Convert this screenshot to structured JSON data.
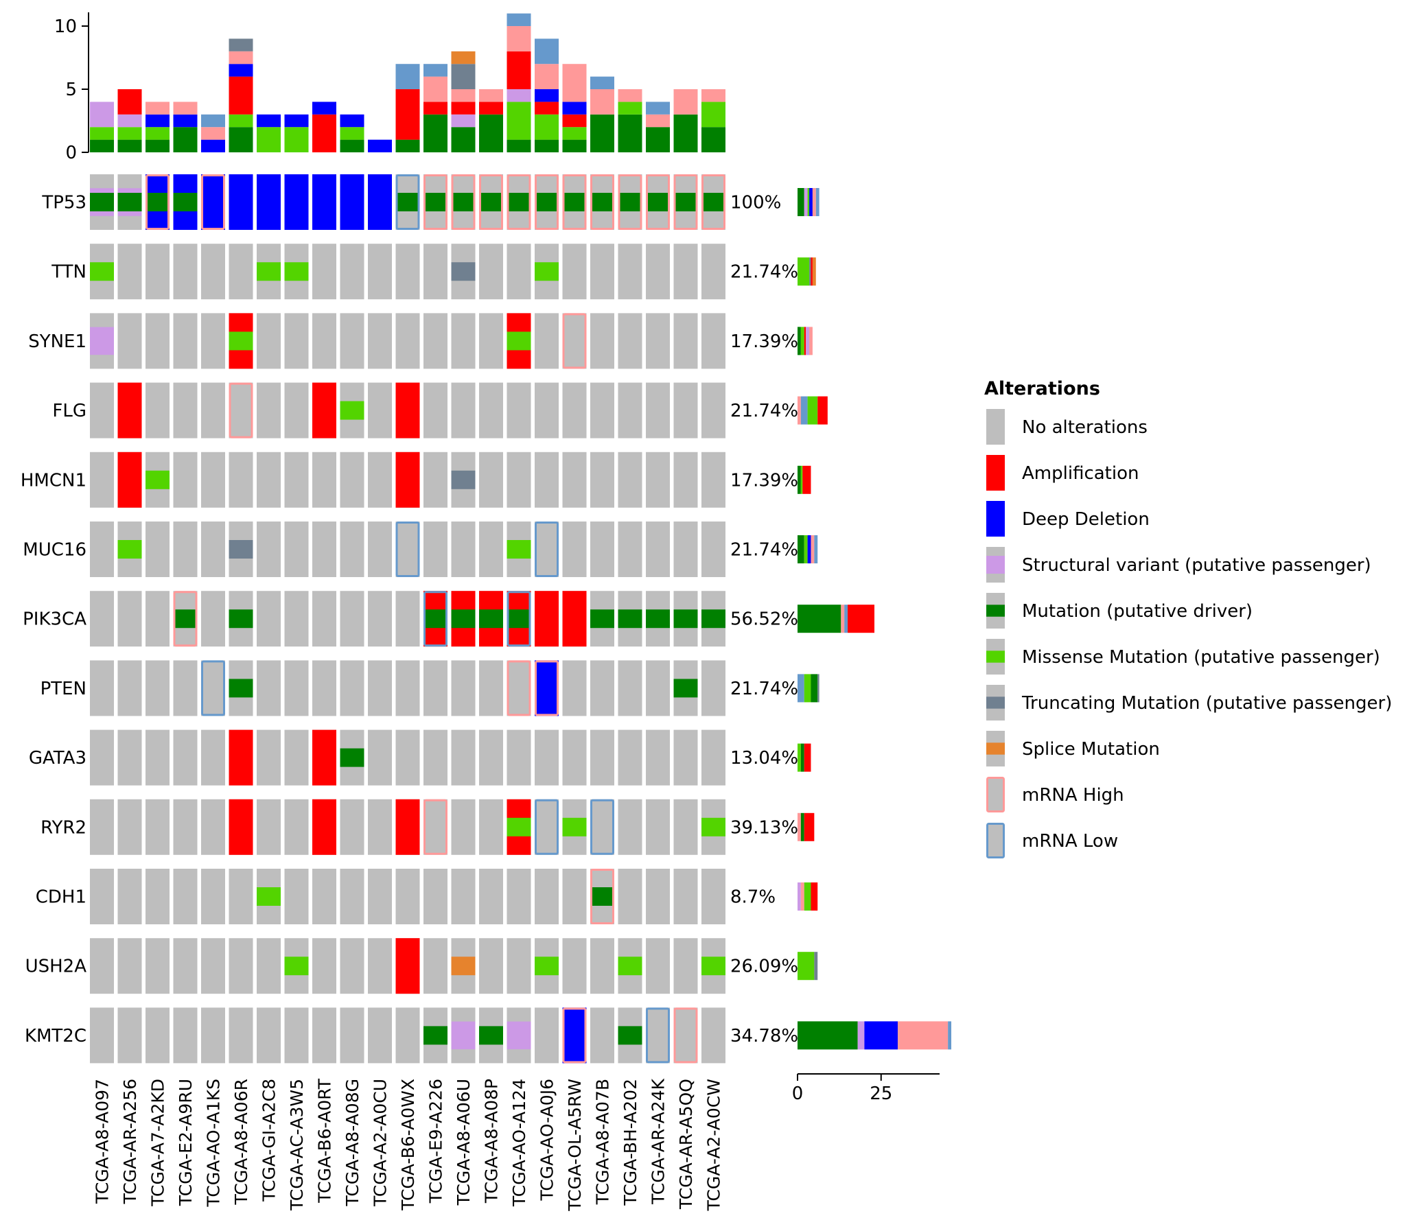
{
  "chart_data": {
    "type": "oncoprint",
    "samples": [
      "TCGA-A8-A097",
      "TCGA-AR-A256",
      "TCGA-A7-A2KD",
      "TCGA-E2-A9RU",
      "TCGA-AO-A1KS",
      "TCGA-A8-A06R",
      "TCGA-GI-A2C8",
      "TCGA-AC-A3W5",
      "TCGA-B6-A0RT",
      "TCGA-A8-A08G",
      "TCGA-A2-A0CU",
      "TCGA-B6-A0WX",
      "TCGA-E9-A226",
      "TCGA-A8-A06U",
      "TCGA-A8-A08P",
      "TCGA-AO-A124",
      "TCGA-AO-A0J6",
      "TCGA-OL-A5RW",
      "TCGA-A8-A07B",
      "TCGA-BH-A202",
      "TCGA-AR-A24K",
      "TCGA-AR-A5QQ",
      "TCGA-A2-A0CW"
    ],
    "genes": [
      {
        "name": "TP53",
        "percent": "100%"
      },
      {
        "name": "TTN",
        "percent": "21.74%"
      },
      {
        "name": "SYNE1",
        "percent": "17.39%"
      },
      {
        "name": "FLG",
        "percent": "21.74%"
      },
      {
        "name": "HMCN1",
        "percent": "17.39%"
      },
      {
        "name": "MUC16",
        "percent": "21.74%"
      },
      {
        "name": "PIK3CA",
        "percent": "56.52%"
      },
      {
        "name": "PTEN",
        "percent": "21.74%"
      },
      {
        "name": "GATA3",
        "percent": "13.04%"
      },
      {
        "name": "RYR2",
        "percent": "39.13%"
      },
      {
        "name": "CDH1",
        "percent": "8.7%"
      },
      {
        "name": "USH2A",
        "percent": "26.09%"
      },
      {
        "name": "KMT2C",
        "percent": "34.78%"
      }
    ],
    "alterations": {
      "TP53": [
        [
          "SV",
          "DRV"
        ],
        [
          "SV",
          "DRV"
        ],
        [
          "DEL",
          "DRV",
          "HIGH"
        ],
        [
          "DEL",
          "DRV"
        ],
        [
          "DEL",
          "HIGH"
        ],
        [
          "DEL"
        ],
        [
          "DEL"
        ],
        [
          "DEL"
        ],
        [
          "DEL"
        ],
        [
          "DEL"
        ],
        [
          "DEL"
        ],
        [
          "DRV",
          "LOW"
        ],
        [
          "DRV",
          "HIGH"
        ],
        [
          "DRV",
          "HIGH"
        ],
        [
          "DRV",
          "HIGH"
        ],
        [
          "DRV",
          "HIGH"
        ],
        [
          "DRV",
          "HIGH"
        ],
        [
          "DRV",
          "HIGH"
        ],
        [
          "DRV",
          "HIGH"
        ],
        [
          "DRV",
          "HIGH"
        ],
        [
          "DRV",
          "HIGH"
        ],
        [
          "DRV",
          "HIGH"
        ],
        [
          "DRV",
          "HIGH"
        ]
      ],
      "TTN": [
        [
          "MIS"
        ],
        [],
        [],
        [],
        [],
        [],
        [
          "MIS"
        ],
        [
          "MIS"
        ],
        [],
        [],
        [],
        [],
        [],
        [
          "TRUNC"
        ],
        [],
        [],
        [
          "MIS"
        ],
        [],
        [],
        [],
        [],
        [],
        []
      ],
      "SYNE1": [
        [
          "SV"
        ],
        [],
        [],
        [],
        [],
        [
          "AMP",
          "MIS"
        ],
        [],
        [],
        [],
        [],
        [],
        [],
        [],
        [],
        [],
        [
          "AMP",
          "MIS"
        ],
        [],
        [
          "HIGH"
        ],
        [],
        [],
        [],
        [],
        []
      ],
      "FLG": [
        [],
        [
          "AMP"
        ],
        [],
        [],
        [],
        [
          "HIGH"
        ],
        [],
        [],
        [
          "AMP"
        ],
        [
          "MIS"
        ],
        [],
        [
          "AMP"
        ],
        [],
        [],
        [],
        [],
        [],
        [],
        [],
        [],
        [],
        [],
        []
      ],
      "HMCN1": [
        [],
        [
          "AMP"
        ],
        [
          "MIS"
        ],
        [],
        [],
        [],
        [],
        [],
        [],
        [],
        [],
        [
          "AMP"
        ],
        [],
        [
          "TRUNC"
        ],
        [],
        [],
        [],
        [],
        [],
        [],
        [],
        [],
        []
      ],
      "MUC16": [
        [],
        [
          "MIS"
        ],
        [],
        [],
        [],
        [
          "TRUNC"
        ],
        [],
        [],
        [],
        [],
        [],
        [
          "LOW"
        ],
        [],
        [],
        [],
        [
          "MIS"
        ],
        [
          "LOW"
        ],
        [],
        [],
        [],
        [],
        [],
        []
      ],
      "PIK3CA": [
        [],
        [],
        [],
        [
          "DRV",
          "HIGH"
        ],
        [],
        [
          "DRV"
        ],
        [],
        [],
        [],
        [],
        [],
        [],
        [
          "AMP",
          "DRV",
          "LOW"
        ],
        [
          "AMP",
          "DRV"
        ],
        [
          "AMP",
          "DRV"
        ],
        [
          "AMP",
          "DRV",
          "LOW"
        ],
        [
          "AMP"
        ],
        [
          "AMP"
        ],
        [
          "DRV"
        ],
        [
          "DRV"
        ],
        [
          "DRV"
        ],
        [
          "DRV"
        ],
        [
          "DRV"
        ]
      ],
      "PTEN": [
        [],
        [],
        [],
        [],
        [
          "LOW"
        ],
        [
          "DRV"
        ],
        [],
        [],
        [],
        [],
        [],
        [],
        [],
        [],
        [],
        [
          "HIGH"
        ],
        [
          "DEL",
          "HIGH"
        ],
        [],
        [],
        [],
        [],
        [
          "DRV"
        ],
        []
      ],
      "GATA3": [
        [],
        [],
        [],
        [],
        [],
        [
          "AMP"
        ],
        [],
        [],
        [
          "AMP"
        ],
        [
          "DRV"
        ],
        [],
        [],
        [],
        [],
        [],
        [],
        [],
        [],
        [],
        [],
        [],
        [],
        []
      ],
      "RYR2": [
        [],
        [],
        [],
        [],
        [],
        [
          "AMP"
        ],
        [],
        [],
        [
          "AMP"
        ],
        [],
        [],
        [
          "AMP"
        ],
        [
          "HIGH"
        ],
        [],
        [],
        [
          "AMP",
          "MIS"
        ],
        [
          "LOW"
        ],
        [
          "MIS"
        ],
        [
          "LOW"
        ],
        [],
        [],
        [],
        [
          "MIS"
        ]
      ],
      "CDH1": [
        [],
        [],
        [],
        [],
        [],
        [],
        [
          "MIS"
        ],
        [],
        [],
        [],
        [],
        [],
        [],
        [],
        [],
        [],
        [],
        [],
        [
          "DRV",
          "HIGH"
        ],
        [],
        [],
        [],
        []
      ],
      "USH2A": [
        [],
        [],
        [],
        [],
        [],
        [],
        [],
        [
          "MIS"
        ],
        [],
        [],
        [],
        [
          "AMP"
        ],
        [],
        [
          "SPLICE"
        ],
        [],
        [],
        [
          "MIS"
        ],
        [],
        [],
        [
          "MIS"
        ],
        [],
        [],
        [
          "MIS"
        ]
      ],
      "KMT2C": [
        [],
        [],
        [],
        [],
        [],
        [],
        [],
        [],
        [],
        [],
        [],
        [],
        [
          "DRV"
        ],
        [
          "SV"
        ],
        [
          "DRV"
        ],
        [
          "SV"
        ],
        [],
        [
          "DEL",
          "HIGH"
        ],
        [],
        [
          "DRV"
        ],
        [
          "LOW"
        ],
        [
          "HIGH"
        ],
        []
      ]
    },
    "top_bars": [
      [
        [
          "DRV",
          1
        ],
        [
          "MIS",
          1
        ],
        [
          "SV",
          2
        ]
      ],
      [
        [
          "DRV",
          1
        ],
        [
          "MIS",
          1
        ],
        [
          "SV",
          1
        ],
        [
          "AMP",
          2
        ]
      ],
      [
        [
          "DRV",
          1
        ],
        [
          "MIS",
          1
        ],
        [
          "DEL",
          1
        ],
        [
          "HIGH",
          1
        ]
      ],
      [
        [
          "DRV",
          2
        ],
        [
          "DEL",
          1
        ],
        [
          "HIGH",
          1
        ]
      ],
      [
        [
          "DEL",
          1
        ],
        [
          "HIGH",
          1
        ],
        [
          "LOW",
          1
        ]
      ],
      [
        [
          "DRV",
          2
        ],
        [
          "MIS",
          1
        ],
        [
          "AMP",
          3
        ],
        [
          "DEL",
          1
        ],
        [
          "HIGH",
          1
        ],
        [
          "TRUNC",
          1
        ]
      ],
      [
        [
          "MIS",
          2
        ],
        [
          "DEL",
          1
        ]
      ],
      [
        [
          "MIS",
          2
        ],
        [
          "DEL",
          1
        ]
      ],
      [
        [
          "AMP",
          3
        ],
        [
          "DEL",
          1
        ]
      ],
      [
        [
          "DRV",
          1
        ],
        [
          "MIS",
          1
        ],
        [
          "DEL",
          1
        ]
      ],
      [
        [
          "DEL",
          1
        ]
      ],
      [
        [
          "DRV",
          1
        ],
        [
          "AMP",
          4
        ],
        [
          "LOW",
          2
        ]
      ],
      [
        [
          "DRV",
          3
        ],
        [
          "AMP",
          1
        ],
        [
          "HIGH",
          2
        ],
        [
          "LOW",
          1
        ]
      ],
      [
        [
          "DRV",
          2
        ],
        [
          "SV",
          1
        ],
        [
          "AMP",
          1
        ],
        [
          "HIGH",
          1
        ],
        [
          "TRUNC",
          2
        ],
        [
          "SPLICE",
          1
        ]
      ],
      [
        [
          "DRV",
          3
        ],
        [
          "AMP",
          1
        ],
        [
          "HIGH",
          1
        ]
      ],
      [
        [
          "DRV",
          1
        ],
        [
          "MIS",
          3
        ],
        [
          "SV",
          1
        ],
        [
          "AMP",
          3
        ],
        [
          "HIGH",
          2
        ],
        [
          "LOW",
          1
        ]
      ],
      [
        [
          "DRV",
          1
        ],
        [
          "MIS",
          2
        ],
        [
          "AMP",
          1
        ],
        [
          "DEL",
          1
        ],
        [
          "HIGH",
          2
        ],
        [
          "LOW",
          2
        ]
      ],
      [
        [
          "DRV",
          1
        ],
        [
          "MIS",
          1
        ],
        [
          "AMP",
          1
        ],
        [
          "DEL",
          1
        ],
        [
          "HIGH",
          3
        ]
      ],
      [
        [
          "DRV",
          3
        ],
        [
          "HIGH",
          2
        ],
        [
          "LOW",
          1
        ]
      ],
      [
        [
          "DRV",
          3
        ],
        [
          "MIS",
          1
        ],
        [
          "HIGH",
          1
        ]
      ],
      [
        [
          "DRV",
          2
        ],
        [
          "HIGH",
          1
        ],
        [
          "LOW",
          1
        ]
      ],
      [
        [
          "DRV",
          3
        ],
        [
          "HIGH",
          2
        ]
      ],
      [
        [
          "DRV",
          2
        ],
        [
          "MIS",
          2
        ],
        [
          "HIGH",
          1
        ]
      ]
    ],
    "top_axis": {
      "ticks": [
        0,
        5,
        10
      ],
      "max": 11
    },
    "side_bars": {
      "TP53": [
        [
          "DRV",
          2
        ],
        [
          "SV",
          1
        ],
        [
          "MIS",
          0.5
        ],
        [
          "DEL",
          1
        ],
        [
          "HIGH",
          1
        ],
        [
          "LOW",
          1
        ]
      ],
      "TTN": [
        [
          "MIS",
          3.5
        ],
        [
          "TRUNC",
          0.5
        ],
        [
          "AMP",
          0.5
        ],
        [
          "SPLICE",
          1
        ]
      ],
      "SYNE1": [
        [
          "DRV",
          1
        ],
        [
          "MIS",
          1
        ],
        [
          "AMP",
          0.5
        ],
        [
          "SV",
          1
        ],
        [
          "HIGH",
          1
        ]
      ],
      "FLG": [
        [
          "HIGH",
          1
        ],
        [
          "LOW",
          2
        ],
        [
          "MIS",
          3
        ],
        [
          "AMP",
          3
        ]
      ],
      "HMCN1": [
        [
          "DRV",
          1
        ],
        [
          "MIS",
          0.5
        ],
        [
          "AMP",
          2.5
        ]
      ],
      "MUC16": [
        [
          "DRV",
          2
        ],
        [
          "MIS",
          1
        ],
        [
          "DEL",
          1
        ],
        [
          "HIGH",
          1
        ],
        [
          "LOW",
          1
        ]
      ],
      "PIK3CA": [
        [
          "DRV",
          13
        ],
        [
          "HIGH",
          1
        ],
        [
          "LOW",
          1
        ],
        [
          "AMP",
          8
        ]
      ],
      "PTEN": [
        [
          "LOW",
          2
        ],
        [
          "MIS",
          2
        ],
        [
          "DRV",
          2
        ],
        [
          "TRUNC",
          0.5
        ]
      ],
      "GATA3": [
        [
          "MIS",
          1
        ],
        [
          "DRV",
          1
        ],
        [
          "AMP",
          2
        ]
      ],
      "RYR2": [
        [
          "HIGH",
          1
        ],
        [
          "DRV",
          1
        ],
        [
          "AMP",
          3
        ]
      ],
      "CDH1": [
        [
          "SV",
          1
        ],
        [
          "HIGH",
          1
        ],
        [
          "MIS",
          2
        ],
        [
          "AMP",
          2
        ]
      ],
      "USH2A": [
        [
          "MIS",
          5
        ],
        [
          "TRUNC",
          1
        ]
      ],
      "KMT2C": [
        [
          "DRV",
          18
        ],
        [
          "SV",
          2
        ],
        [
          "DEL",
          10
        ],
        [
          "HIGH",
          15
        ],
        [
          "LOW",
          1
        ]
      ]
    },
    "side_axis": {
      "ticks": [
        0,
        25
      ],
      "max": 50
    },
    "legend": {
      "title": "Alterations",
      "items": [
        {
          "key": "NONE",
          "label": "No alterations"
        },
        {
          "key": "AMP",
          "label": "Amplification"
        },
        {
          "key": "DEL",
          "label": "Deep Deletion"
        },
        {
          "key": "SV",
          "label": "Structural variant (putative passenger)"
        },
        {
          "key": "DRV",
          "label": "Mutation (putative driver)"
        },
        {
          "key": "MIS",
          "label": "Missense Mutation (putative passenger)"
        },
        {
          "key": "TRUNC",
          "label": "Truncating Mutation (putative passenger)"
        },
        {
          "key": "SPLICE",
          "label": "Splice Mutation"
        },
        {
          "key": "HIGH",
          "label": "mRNA High"
        },
        {
          "key": "LOW",
          "label": "mRNA Low"
        }
      ]
    },
    "colors": {
      "NONE": "#bebebe",
      "AMP": "#ff0000",
      "DEL": "#0000ff",
      "SV": "#cc99e6",
      "DRV": "#008000",
      "MIS": "#53d400",
      "TRUNC": "#708090",
      "SPLICE": "#e6832d",
      "HIGH": "#ff9999",
      "LOW": "#6699cc"
    }
  }
}
